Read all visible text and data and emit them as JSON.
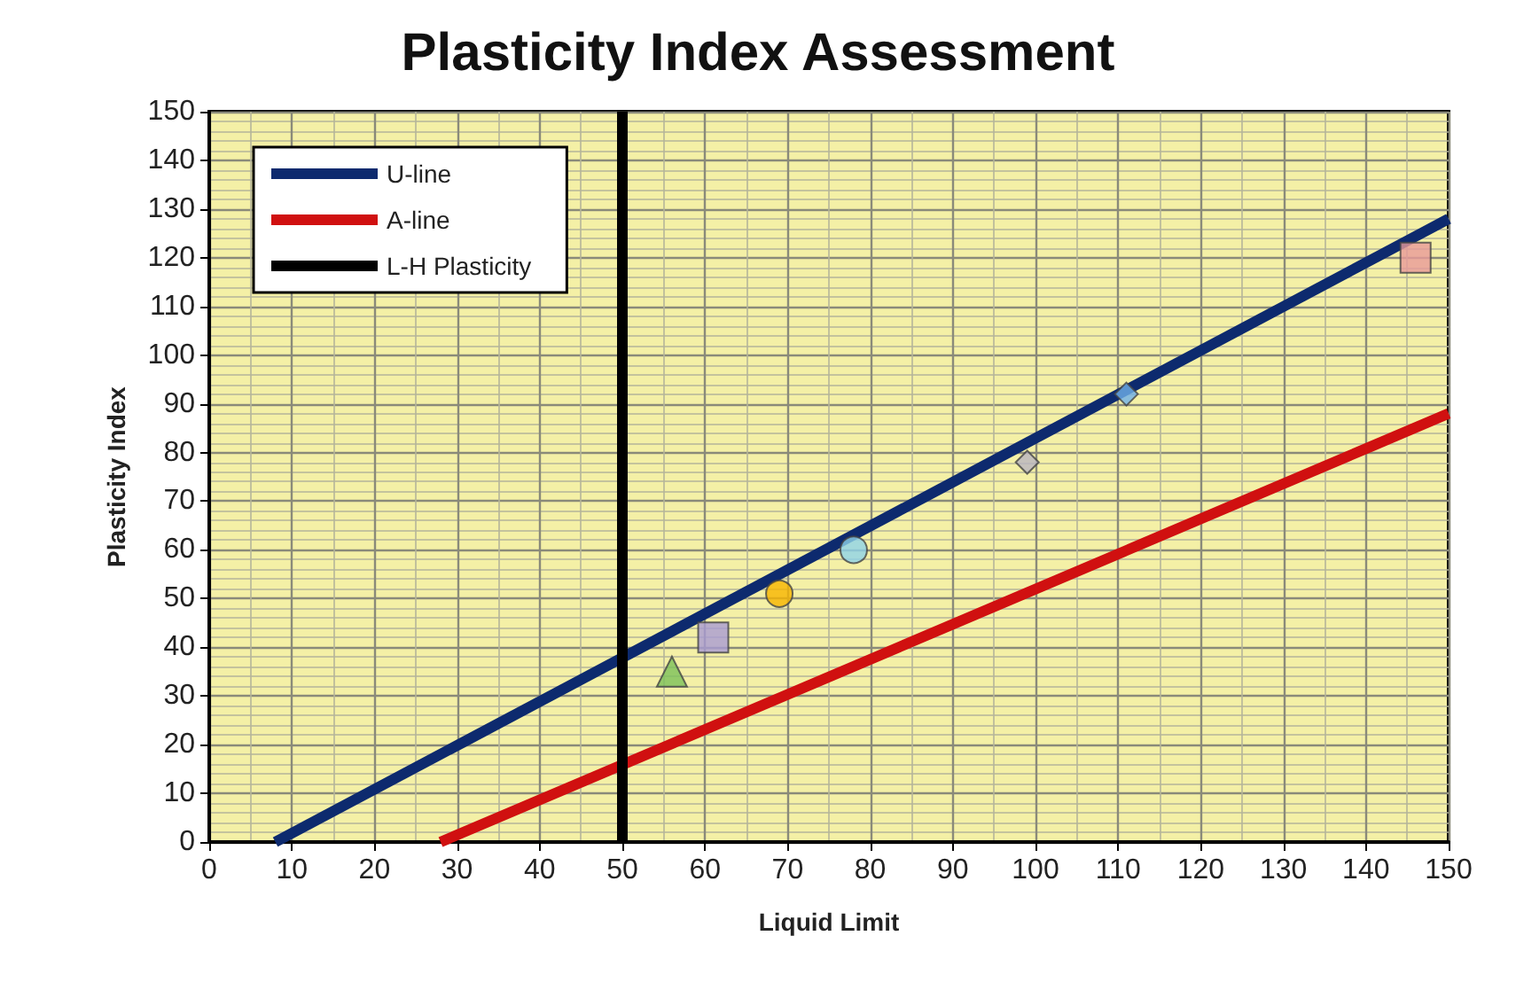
{
  "chart_data": {
    "type": "line",
    "title": "Plasticity Index Assessment",
    "xlabel": "Liquid Limit",
    "ylabel": "Plasticity Index",
    "xlim": [
      0,
      150
    ],
    "ylim": [
      0,
      150
    ],
    "xticks": [
      0,
      10,
      20,
      30,
      40,
      50,
      60,
      70,
      80,
      90,
      100,
      110,
      120,
      130,
      140,
      150
    ],
    "yticks": [
      0,
      10,
      20,
      30,
      40,
      50,
      60,
      70,
      80,
      90,
      100,
      110,
      120,
      130,
      140,
      150
    ],
    "grid": true,
    "legend": "top left",
    "marker": "none",
    "line_style": "solid",
    "series": [
      {
        "name": "U-line",
        "color": "#0d2a6e",
        "x": [
          8,
          150
        ],
        "values": [
          0,
          128
        ]
      },
      {
        "name": "A-line",
        "color": "#d01010",
        "x": [
          28,
          150
        ],
        "values": [
          0,
          88
        ]
      },
      {
        "name": "L-H Plasticity",
        "color": "#000000",
        "x": [
          50,
          50
        ],
        "values": [
          0,
          150
        ]
      },
      {
        "type": "scatter",
        "marker": "triangle",
        "color": "#7cc05a",
        "x": [
          56
        ],
        "values": [
          35
        ]
      },
      {
        "type": "scatter",
        "marker": "square",
        "color": "#a99bd4",
        "x": [
          61
        ],
        "values": [
          42
        ]
      },
      {
        "type": "scatter",
        "marker": "circle",
        "color": "#f7b500",
        "x": [
          69
        ],
        "values": [
          51
        ]
      },
      {
        "type": "scatter",
        "marker": "circle",
        "color": "#8fd3ea",
        "x": [
          78
        ],
        "values": [
          60
        ]
      },
      {
        "type": "scatter",
        "marker": "diamond",
        "color": "#b9b5c2",
        "x": [
          99
        ],
        "values": [
          78
        ]
      },
      {
        "type": "scatter",
        "marker": "diamond",
        "color": "#6fb0ea",
        "x": [
          111
        ],
        "values": [
          92
        ]
      },
      {
        "type": "scatter",
        "marker": "square",
        "color": "#e89a9a",
        "x": [
          146
        ],
        "values": [
          120
        ]
      }
    ]
  }
}
